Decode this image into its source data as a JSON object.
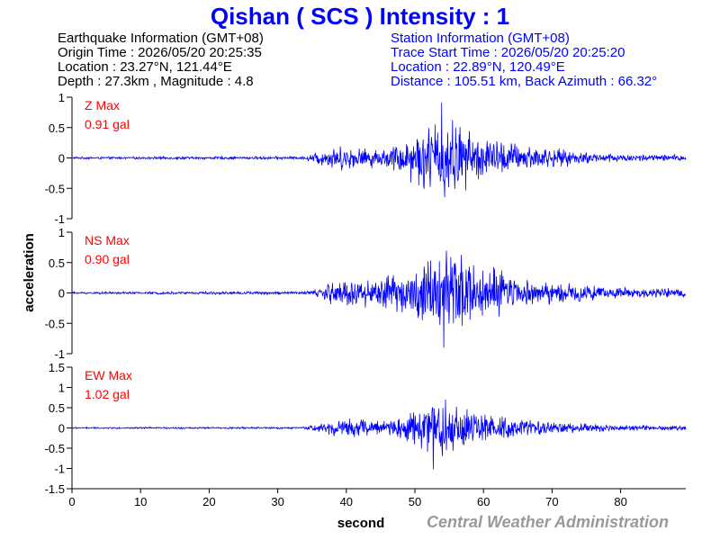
{
  "header": {
    "title": "Qishan ( SCS ) Intensity : 1",
    "earthquake": {
      "heading": "Earthquake Information (GMT+08)",
      "origin_time": "Origin Time : 2026/05/20 20:25:35",
      "location": "Location : 23.27°N, 121.44°E",
      "depth_magnitude": "Depth : 27.3km , Magnitude : 4.8"
    },
    "station": {
      "heading": "Station Information (GMT+08)",
      "trace_start": "Trace Start Time : 2026/05/20 20:25:20",
      "location": "Location : 22.89°N, 120.49°E",
      "distance": "Distance : 105.51 km, Back Azimuth : 66.32°"
    }
  },
  "footer": {
    "credit": "Central Weather Administration"
  },
  "colors": {
    "title": "#0000ff",
    "trace": "#0000ff",
    "max_label": "#ff0000",
    "axis": "#000000"
  },
  "chart_data": {
    "type": "line",
    "xlabel": "second",
    "ylabel": "acceleration",
    "xlim": [
      0,
      89.5
    ],
    "xticks": [
      0,
      10,
      20,
      30,
      40,
      50,
      60,
      70,
      80
    ],
    "panels": [
      {
        "component": "Z",
        "max_label": "Z Max",
        "max_value": "0.91 gal",
        "ylim": [
          -1,
          1
        ],
        "yticks": [
          1,
          0.5,
          0,
          -0.5,
          -1
        ],
        "ytick_labels": [
          "1",
          "0.5",
          "0",
          "-0.5",
          "-1"
        ],
        "envelope": [
          [
            0,
            0.02
          ],
          [
            34,
            0.03
          ],
          [
            35.5,
            0.12
          ],
          [
            38,
            0.22
          ],
          [
            40,
            0.22
          ],
          [
            42,
            0.2
          ],
          [
            45,
            0.16
          ],
          [
            48,
            0.3
          ],
          [
            50,
            0.5
          ],
          [
            52,
            0.62
          ],
          [
            54,
            0.85
          ],
          [
            56,
            0.7
          ],
          [
            58,
            0.52
          ],
          [
            60,
            0.4
          ],
          [
            62,
            0.35
          ],
          [
            65,
            0.28
          ],
          [
            68,
            0.22
          ],
          [
            72,
            0.15
          ],
          [
            76,
            0.1
          ],
          [
            82,
            0.07
          ],
          [
            89.5,
            0.06
          ]
        ],
        "peak": {
          "x": 53.9,
          "y": 0.91
        }
      },
      {
        "component": "NS",
        "max_label": "NS Max",
        "max_value": "0.90 gal",
        "ylim": [
          -1,
          1
        ],
        "yticks": [
          1,
          0.5,
          0,
          -0.5,
          -1
        ],
        "ytick_labels": [
          "1",
          "0.5",
          "0",
          "-0.5",
          "-1"
        ],
        "envelope": [
          [
            0,
            0.02
          ],
          [
            34,
            0.03
          ],
          [
            35.5,
            0.08
          ],
          [
            38,
            0.22
          ],
          [
            40,
            0.3
          ],
          [
            42,
            0.25
          ],
          [
            45,
            0.3
          ],
          [
            48,
            0.35
          ],
          [
            50,
            0.55
          ],
          [
            52,
            0.7
          ],
          [
            54,
            0.85
          ],
          [
            56,
            0.75
          ],
          [
            58,
            0.6
          ],
          [
            60,
            0.5
          ],
          [
            63,
            0.4
          ],
          [
            66,
            0.3
          ],
          [
            70,
            0.22
          ],
          [
            75,
            0.15
          ],
          [
            80,
            0.1
          ],
          [
            85,
            0.08
          ],
          [
            89.5,
            0.08
          ]
        ],
        "peak": {
          "x": 54.2,
          "y": -0.9
        }
      },
      {
        "component": "EW",
        "max_label": "EW Max",
        "max_value": "1.02 gal",
        "ylim": [
          -1.5,
          1.5
        ],
        "yticks": [
          1.5,
          1,
          0.5,
          0,
          -0.5,
          -1,
          -1.5
        ],
        "ytick_labels": [
          "1.5",
          "1",
          "0.5",
          "0",
          "-0.5",
          "-1",
          "-1.5"
        ],
        "envelope": [
          [
            0,
            0.02
          ],
          [
            34,
            0.03
          ],
          [
            35.5,
            0.12
          ],
          [
            38,
            0.25
          ],
          [
            40,
            0.28
          ],
          [
            42,
            0.25
          ],
          [
            45,
            0.22
          ],
          [
            48,
            0.35
          ],
          [
            50,
            0.55
          ],
          [
            52,
            0.8
          ],
          [
            54,
            0.95
          ],
          [
            56,
            0.7
          ],
          [
            58,
            0.5
          ],
          [
            60,
            0.38
          ],
          [
            63,
            0.3
          ],
          [
            66,
            0.22
          ],
          [
            70,
            0.16
          ],
          [
            75,
            0.12
          ],
          [
            80,
            0.08
          ],
          [
            85,
            0.07
          ],
          [
            89.5,
            0.06
          ]
        ],
        "peak": {
          "x": 52.7,
          "y": -1.02
        }
      }
    ]
  }
}
